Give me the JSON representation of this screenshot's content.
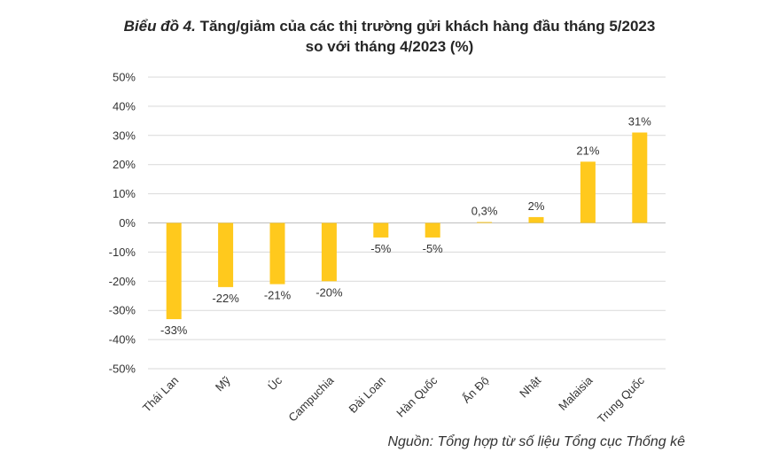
{
  "title": {
    "prefix": "Biểu đồ 4.",
    "line1": "Tăng/giảm của các thị trường gửi khách hàng đầu tháng 5/2023",
    "line2": "so với tháng 4/2023 (%)"
  },
  "source": "Nguồn: Tổng hợp từ số liệu Tổng cục Thống kê",
  "chart_data": {
    "type": "bar",
    "categories": [
      "Thái Lan",
      "Mỹ",
      "Úc",
      "Campuchia",
      "Đài Loan",
      "Hàn Quốc",
      "Ấn Độ",
      "Nhật",
      "Malaisia",
      "Trung Quốc"
    ],
    "values": [
      -33,
      -22,
      -21,
      -20,
      -5,
      -5,
      0.3,
      2,
      21,
      31
    ],
    "data_labels": [
      "-33%",
      "-22%",
      "-21%",
      "-20%",
      "-5%",
      "-5%",
      "0,3%",
      "2%",
      "21%",
      "31%"
    ],
    "yticks": [
      50,
      40,
      30,
      20,
      10,
      0,
      -10,
      -20,
      -30,
      -40,
      -50
    ],
    "ytick_labels": [
      "50%",
      "40%",
      "30%",
      "20%",
      "10%",
      "0%",
      "-10%",
      "-20%",
      "-30%",
      "-40%",
      "-50%"
    ],
    "ylim": [
      -50,
      50
    ],
    "grid": true,
    "legend": "none",
    "bar_color": "#FFC91D"
  }
}
